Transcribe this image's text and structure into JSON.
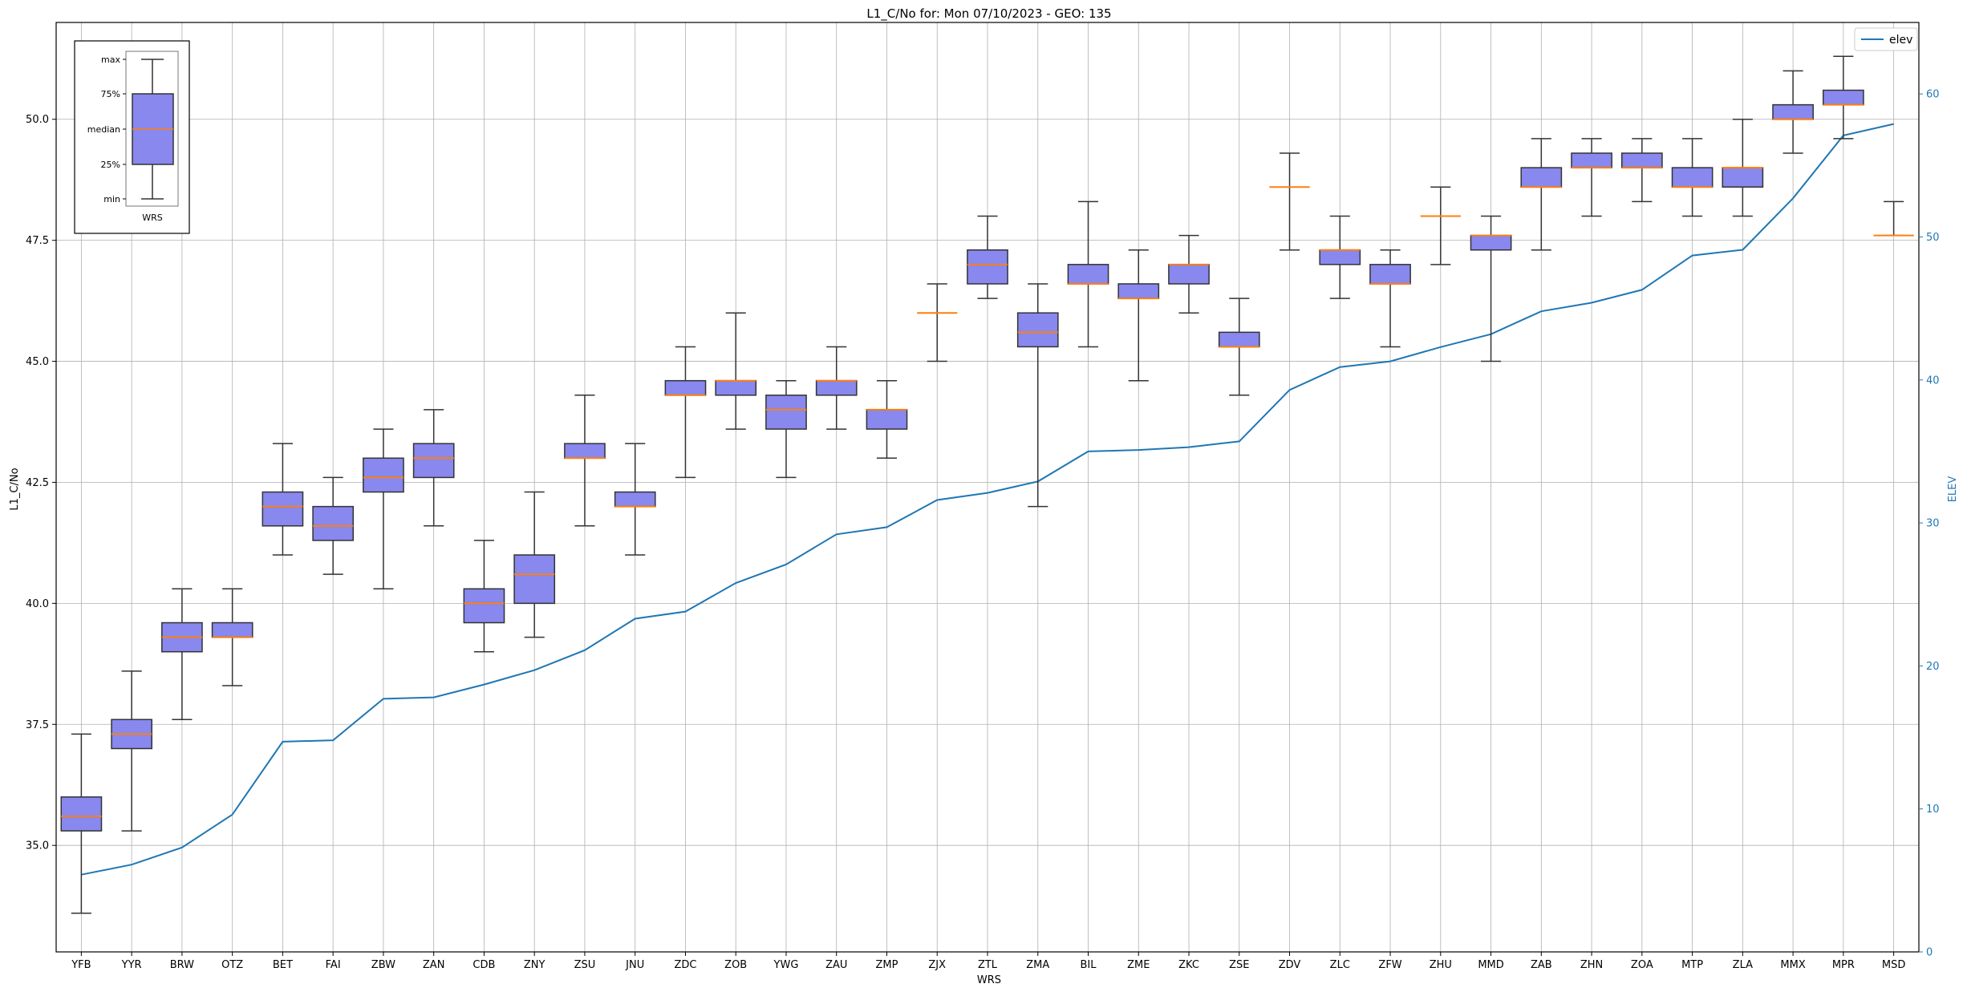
{
  "chart_data": {
    "type": "box",
    "title": "L1_C/No for: Mon 07/10/2023 - GEO: 135",
    "xlabel": "WRS",
    "ylabel": "L1_C/No",
    "y2label": "ELEV",
    "ylim": [
      32.8,
      52.0
    ],
    "y2lim": [
      0,
      65
    ],
    "yticks": [
      "35.0",
      "37.5",
      "40.0",
      "42.5",
      "45.0",
      "47.5",
      "50.0"
    ],
    "y2ticks": [
      "0",
      "10",
      "20",
      "30",
      "40",
      "50",
      "60"
    ],
    "grid": true,
    "legend": {
      "location": "upper right",
      "entries": [
        "elev"
      ]
    },
    "categories": [
      "YFB",
      "YYR",
      "BRW",
      "OTZ",
      "BET",
      "FAI",
      "ZBW",
      "ZAN",
      "CDB",
      "ZNY",
      "ZSU",
      "JNU",
      "ZDC",
      "ZOB",
      "YWG",
      "ZAU",
      "ZMP",
      "ZJX",
      "ZTL",
      "ZMA",
      "BIL",
      "ZME",
      "ZKC",
      "ZSE",
      "ZDV",
      "ZLC",
      "ZFW",
      "ZHU",
      "MMD",
      "ZAB",
      "ZHN",
      "ZOA",
      "MTP",
      "ZLA",
      "MMX",
      "MPR",
      "MSD"
    ],
    "boxes": [
      {
        "min": 33.6,
        "q1": 35.3,
        "median": 35.6,
        "q3": 36.0,
        "max": 37.3
      },
      {
        "min": 35.3,
        "q1": 37.0,
        "median": 37.3,
        "q3": 37.6,
        "max": 38.6
      },
      {
        "min": 37.6,
        "q1": 39.0,
        "median": 39.3,
        "q3": 39.6,
        "max": 40.3
      },
      {
        "min": 38.3,
        "q1": 39.3,
        "median": 39.3,
        "q3": 39.6,
        "max": 40.3
      },
      {
        "min": 41.0,
        "q1": 41.6,
        "median": 42.0,
        "q3": 42.3,
        "max": 43.3
      },
      {
        "min": 40.6,
        "q1": 41.3,
        "median": 41.6,
        "q3": 42.0,
        "max": 42.6
      },
      {
        "min": 40.3,
        "q1": 42.3,
        "median": 42.6,
        "q3": 43.0,
        "max": 43.6
      },
      {
        "min": 41.6,
        "q1": 42.6,
        "median": 43.0,
        "q3": 43.3,
        "max": 44.0
      },
      {
        "min": 39.0,
        "q1": 39.6,
        "median": 40.0,
        "q3": 40.3,
        "max": 41.3
      },
      {
        "min": 39.3,
        "q1": 40.0,
        "median": 40.6,
        "q3": 41.0,
        "max": 42.3
      },
      {
        "min": 41.6,
        "q1": 43.0,
        "median": 43.0,
        "q3": 43.3,
        "max": 44.3
      },
      {
        "min": 41.0,
        "q1": 42.0,
        "median": 42.0,
        "q3": 42.3,
        "max": 43.3
      },
      {
        "min": 42.6,
        "q1": 44.3,
        "median": 44.3,
        "q3": 44.6,
        "max": 45.3
      },
      {
        "min": 43.6,
        "q1": 44.3,
        "median": 44.6,
        "q3": 44.6,
        "max": 46.0
      },
      {
        "min": 42.6,
        "q1": 43.6,
        "median": 44.0,
        "q3": 44.3,
        "max": 44.6
      },
      {
        "min": 43.6,
        "q1": 44.3,
        "median": 44.6,
        "q3": 44.6,
        "max": 45.3
      },
      {
        "min": 43.0,
        "q1": 43.6,
        "median": 44.0,
        "q3": 44.0,
        "max": 44.6
      },
      {
        "min": 45.0,
        "q1": 46.0,
        "median": 46.0,
        "q3": 46.0,
        "max": 46.6
      },
      {
        "min": 46.3,
        "q1": 46.6,
        "median": 47.0,
        "q3": 47.3,
        "max": 48.0
      },
      {
        "min": 42.0,
        "q1": 45.3,
        "median": 45.6,
        "q3": 46.0,
        "max": 46.6
      },
      {
        "min": 45.3,
        "q1": 46.6,
        "median": 46.6,
        "q3": 47.0,
        "max": 48.3
      },
      {
        "min": 44.6,
        "q1": 46.3,
        "median": 46.3,
        "q3": 46.6,
        "max": 47.3
      },
      {
        "min": 46.0,
        "q1": 46.6,
        "median": 47.0,
        "q3": 47.0,
        "max": 47.6
      },
      {
        "min": 44.3,
        "q1": 45.3,
        "median": 45.3,
        "q3": 45.6,
        "max": 46.3
      },
      {
        "min": 47.3,
        "q1": 48.6,
        "median": 48.6,
        "q3": 48.6,
        "max": 49.3
      },
      {
        "min": 46.3,
        "q1": 47.0,
        "median": 47.3,
        "q3": 47.3,
        "max": 48.0
      },
      {
        "min": 45.3,
        "q1": 46.6,
        "median": 46.6,
        "q3": 47.0,
        "max": 47.3
      },
      {
        "min": 47.0,
        "q1": 48.0,
        "median": 48.0,
        "q3": 48.0,
        "max": 48.6
      },
      {
        "min": 45.0,
        "q1": 47.3,
        "median": 47.6,
        "q3": 47.6,
        "max": 48.0
      },
      {
        "min": 47.3,
        "q1": 48.6,
        "median": 48.6,
        "q3": 49.0,
        "max": 49.6
      },
      {
        "min": 48.0,
        "q1": 49.0,
        "median": 49.0,
        "q3": 49.3,
        "max": 49.6
      },
      {
        "min": 48.3,
        "q1": 49.0,
        "median": 49.0,
        "q3": 49.3,
        "max": 49.6
      },
      {
        "min": 48.0,
        "q1": 48.6,
        "median": 48.6,
        "q3": 49.0,
        "max": 49.6
      },
      {
        "min": 48.0,
        "q1": 48.6,
        "median": 49.0,
        "q3": 49.0,
        "max": 50.0
      },
      {
        "min": 49.3,
        "q1": 50.0,
        "median": 50.0,
        "q3": 50.3,
        "max": 51.0
      },
      {
        "min": 49.6,
        "q1": 50.3,
        "median": 50.3,
        "q3": 50.6,
        "max": 51.3
      },
      {
        "min": 47.6,
        "q1": 47.6,
        "median": 47.6,
        "q3": 47.6,
        "max": 48.3
      }
    ],
    "series": [
      {
        "name": "elev",
        "axis": "right",
        "values": [
          5.4,
          6.1,
          7.3,
          9.6,
          14.7,
          14.8,
          17.7,
          17.8,
          18.7,
          19.7,
          21.1,
          23.3,
          23.8,
          25.8,
          27.1,
          29.2,
          29.7,
          31.6,
          32.1,
          32.9,
          35.0,
          35.1,
          35.3,
          35.7,
          39.3,
          40.9,
          41.3,
          42.3,
          43.2,
          44.8,
          45.4,
          46.3,
          48.7,
          49.1,
          52.7,
          57.1,
          57.9
        ]
      }
    ],
    "inset_legend": {
      "labels": [
        "max",
        "75%",
        "median",
        "25%",
        "min"
      ],
      "category": "WRS"
    },
    "colors": {
      "box_fill": "#8888ee",
      "box_edge": "#333333",
      "median": "#ff7f0e",
      "elev_line": "#1f77b4",
      "grid": "#b0b0b0"
    }
  }
}
